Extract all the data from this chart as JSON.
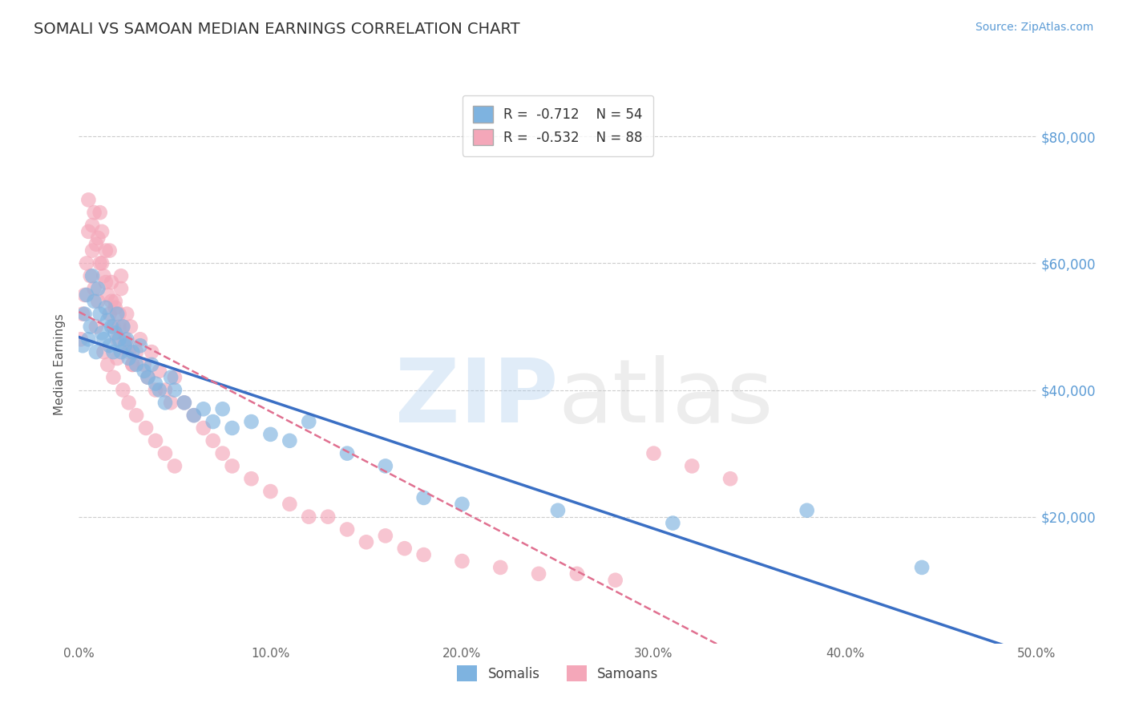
{
  "title": "SOMALI VS SAMOAN MEDIAN EARNINGS CORRELATION CHART",
  "source_text": "Source: ZipAtlas.com",
  "ylabel": "Median Earnings",
  "xlim": [
    0.0,
    0.5
  ],
  "ylim": [
    0,
    88000
  ],
  "xticks": [
    0.0,
    0.1,
    0.2,
    0.3,
    0.4,
    0.5
  ],
  "xticklabels": [
    "0.0%",
    "10.0%",
    "20.0%",
    "30.0%",
    "40.0%",
    "50.0%"
  ],
  "yticks_right": [
    20000,
    40000,
    60000,
    80000
  ],
  "ytick_right_labels": [
    "$20,000",
    "$40,000",
    "$60,000",
    "$80,000"
  ],
  "R_somali": -0.712,
  "N_somali": 54,
  "R_samoan": -0.532,
  "N_samoan": 88,
  "somali_color": "#7EB3E0",
  "samoan_color": "#F4A7B9",
  "somali_line_color": "#3A6FC4",
  "samoan_line_color": "#E07090",
  "grid_color": "#CCCCCC",
  "background_color": "#FFFFFF",
  "title_color": "#333333",
  "somali_scatter_x": [
    0.002,
    0.003,
    0.004,
    0.005,
    0.006,
    0.007,
    0.008,
    0.009,
    0.01,
    0.011,
    0.012,
    0.013,
    0.014,
    0.015,
    0.016,
    0.017,
    0.018,
    0.019,
    0.02,
    0.021,
    0.022,
    0.023,
    0.024,
    0.025,
    0.026,
    0.028,
    0.03,
    0.032,
    0.034,
    0.036,
    0.038,
    0.04,
    0.042,
    0.045,
    0.048,
    0.05,
    0.055,
    0.06,
    0.065,
    0.07,
    0.075,
    0.08,
    0.09,
    0.1,
    0.11,
    0.12,
    0.14,
    0.16,
    0.18,
    0.2,
    0.25,
    0.31,
    0.38,
    0.44
  ],
  "somali_scatter_y": [
    47000,
    52000,
    55000,
    48000,
    50000,
    58000,
    54000,
    46000,
    56000,
    52000,
    49000,
    48000,
    53000,
    51000,
    47000,
    50000,
    46000,
    49000,
    52000,
    48000,
    46000,
    50000,
    47000,
    48000,
    45000,
    46000,
    44000,
    47000,
    43000,
    42000,
    44000,
    41000,
    40000,
    38000,
    42000,
    40000,
    38000,
    36000,
    37000,
    35000,
    37000,
    34000,
    35000,
    33000,
    32000,
    35000,
    30000,
    28000,
    23000,
    22000,
    21000,
    19000,
    21000,
    12000
  ],
  "samoan_scatter_x": [
    0.001,
    0.002,
    0.003,
    0.004,
    0.005,
    0.006,
    0.007,
    0.008,
    0.009,
    0.01,
    0.01,
    0.011,
    0.012,
    0.013,
    0.014,
    0.015,
    0.016,
    0.017,
    0.018,
    0.019,
    0.02,
    0.021,
    0.022,
    0.023,
    0.024,
    0.025,
    0.026,
    0.027,
    0.028,
    0.03,
    0.032,
    0.034,
    0.036,
    0.038,
    0.04,
    0.042,
    0.045,
    0.048,
    0.05,
    0.055,
    0.06,
    0.065,
    0.07,
    0.075,
    0.08,
    0.09,
    0.1,
    0.11,
    0.12,
    0.13,
    0.14,
    0.15,
    0.16,
    0.17,
    0.18,
    0.2,
    0.22,
    0.24,
    0.26,
    0.28,
    0.3,
    0.32,
    0.34,
    0.013,
    0.015,
    0.018,
    0.02,
    0.023,
    0.026,
    0.03,
    0.035,
    0.04,
    0.045,
    0.05,
    0.005,
    0.008,
    0.012,
    0.016,
    0.022,
    0.007,
    0.009,
    0.011,
    0.014,
    0.017,
    0.021,
    0.019,
    0.025,
    0.028
  ],
  "samoan_scatter_y": [
    48000,
    52000,
    55000,
    60000,
    65000,
    58000,
    62000,
    56000,
    50000,
    54000,
    64000,
    68000,
    60000,
    58000,
    62000,
    55000,
    52000,
    57000,
    50000,
    54000,
    48000,
    52000,
    56000,
    50000,
    48000,
    52000,
    46000,
    50000,
    44000,
    46000,
    48000,
    44000,
    42000,
    46000,
    40000,
    43000,
    40000,
    38000,
    42000,
    38000,
    36000,
    34000,
    32000,
    30000,
    28000,
    26000,
    24000,
    22000,
    20000,
    20000,
    18000,
    16000,
    17000,
    15000,
    14000,
    13000,
    12000,
    11000,
    11000,
    10000,
    30000,
    28000,
    26000,
    46000,
    44000,
    42000,
    45000,
    40000,
    38000,
    36000,
    34000,
    32000,
    30000,
    28000,
    70000,
    68000,
    65000,
    62000,
    58000,
    66000,
    63000,
    60000,
    57000,
    54000,
    50000,
    53000,
    47000,
    44000
  ]
}
